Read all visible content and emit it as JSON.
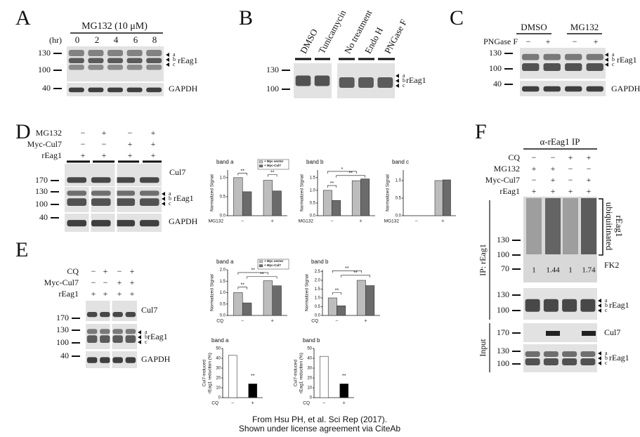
{
  "panel_labels": [
    "A",
    "B",
    "C",
    "D",
    "E",
    "F"
  ],
  "panel_a": {
    "treatment": "MG132 (10 μM)",
    "time_label": "(hr)",
    "times": [
      "0",
      "2",
      "4",
      "6",
      "8"
    ],
    "mw": [
      "130",
      "100",
      "40"
    ],
    "bands": [
      "a",
      "b",
      "c"
    ],
    "protein": "rEag1",
    "loading": "GAPDH"
  },
  "panel_b": {
    "lanes": [
      "DMSO",
      "Tunicamycin",
      "No treatment",
      "Endo H",
      "PNGase F"
    ],
    "mw": [
      "130",
      "100"
    ],
    "bands": [
      "a",
      "b",
      "c"
    ],
    "protein": "rEag1"
  },
  "panel_c": {
    "groups": [
      "DMSO",
      "MG132"
    ],
    "row_label": "PNGase F",
    "signs": [
      "−",
      "+",
      "−",
      "+"
    ],
    "mw": [
      "130",
      "100",
      "40"
    ],
    "bands": [
      "a",
      "b",
      "c"
    ],
    "protein": "rEag1",
    "loading": "GAPDH"
  },
  "panel_d": {
    "rows": [
      {
        "label": "MG132",
        "signs": [
          "−",
          "+",
          "−",
          "+"
        ]
      },
      {
        "label": "Myc-Cul7",
        "signs": [
          "−",
          "−",
          "+",
          "+"
        ]
      },
      {
        "label": "rEag1",
        "signs": [
          "+",
          "+",
          "+",
          "+"
        ]
      }
    ],
    "mw": [
      "170",
      "130",
      "100",
      "40"
    ],
    "blots": [
      "Cul7",
      "rEag1",
      "GAPDH"
    ],
    "bands": [
      "a",
      "b",
      "c"
    ]
  },
  "panel_e": {
    "rows": [
      {
        "label": "CQ",
        "signs": [
          "−",
          "+",
          "−",
          "+"
        ]
      },
      {
        "label": "Myc-Cul7",
        "signs": [
          "−",
          "−",
          "+",
          "+"
        ]
      },
      {
        "label": "rEag1",
        "signs": [
          "+",
          "+",
          "+",
          "+"
        ]
      }
    ],
    "mw": [
      "170",
      "130",
      "100",
      "40"
    ],
    "blots": [
      "Cul7",
      "rEag1",
      "GAPDH"
    ],
    "bands": [
      "a",
      "b",
      "c"
    ]
  },
  "panel_f": {
    "ip": "α-rEag1 IP",
    "rows": [
      {
        "label": "CQ",
        "signs": [
          "−",
          "−",
          "+",
          "+"
        ]
      },
      {
        "label": "MG132",
        "signs": [
          "+",
          "+",
          "−",
          "−"
        ]
      },
      {
        "label": "Myc-Cul7",
        "signs": [
          "−",
          "+",
          "−",
          "+"
        ]
      },
      {
        "label": "rEag1",
        "signs": [
          "+",
          "+",
          "+",
          "+"
        ]
      }
    ],
    "mw": [
      "130",
      "100",
      "70",
      "130",
      "100",
      "170",
      "130",
      "100"
    ],
    "quant": [
      "1",
      "1.44",
      "1",
      "1.74"
    ],
    "ub_label": [
      "ubiquitinated",
      "rEag1"
    ],
    "fk2": "FK2",
    "side_labels": [
      "IP: rEag1",
      "Input"
    ],
    "blots": [
      "rEag1",
      "Cul7",
      "rEag1"
    ],
    "bands_ip": [
      "a",
      "b",
      "c"
    ],
    "bands_input": [
      "a",
      "b",
      "c"
    ]
  },
  "credit": [
    "From Hsu PH, et al. Sci Rep (2017).",
    "Shown under license agreement via CiteAb"
  ],
  "chart_data": [
    {
      "type": "bar",
      "title": "band a",
      "ylabel": [
        "Normalized Signal"
      ],
      "xlabel": "MG132",
      "categories": [
        "−",
        "+"
      ],
      "series": [
        {
          "name": "+ Myc vector",
          "color": "#bdbdbd",
          "values": [
            1.0,
            0.93
          ]
        },
        {
          "name": "+ Myc-Cul7",
          "color": "#6b6b6b",
          "values": [
            0.63,
            0.65
          ]
        }
      ],
      "ylim": [
        0,
        1.2
      ],
      "yticks": [
        {
          "value": 0,
          "label": "0.0"
        },
        {
          "value": 0.5,
          "label": "0.5"
        },
        {
          "value": 1,
          "label": "1.0"
        }
      ],
      "legend": "top-right",
      "annotations": [
        "**",
        "**"
      ]
    },
    {
      "type": "bar",
      "title": "band b",
      "ylabel": [
        "Normalized Signal"
      ],
      "xlabel": "MG132",
      "categories": [
        "−",
        "+"
      ],
      "series": [
        {
          "color": "#bdbdbd",
          "values": [
            1.0,
            1.38
          ]
        },
        {
          "color": "#6b6b6b",
          "values": [
            0.6,
            1.45
          ]
        }
      ],
      "ylim": [
        0,
        1.8
      ],
      "yticks": [
        {
          "value": 0,
          "label": "0.0"
        },
        {
          "value": 0.5,
          "label": "0.5"
        },
        {
          "value": 1,
          "label": "1.0"
        },
        {
          "value": 1.5,
          "label": "1.5"
        }
      ],
      "annotations": [
        "**",
        "*",
        "**"
      ]
    },
    {
      "type": "bar",
      "title": "band c",
      "ylabel": [
        "Normalized Signal"
      ],
      "xlabel": "MG132",
      "categories": [
        "−",
        "+"
      ],
      "series": [
        {
          "color": "#bdbdbd",
          "values": [
            null,
            1.0
          ]
        },
        {
          "color": "#6b6b6b",
          "values": [
            null,
            1.02
          ]
        }
      ],
      "ylim": [
        0,
        1.3
      ],
      "yticks": [
        {
          "value": 0,
          "label": "0.0"
        },
        {
          "value": 0.5,
          "label": "0.5"
        },
        {
          "value": 1,
          "label": "1.0"
        }
      ]
    },
    {
      "type": "bar",
      "title": "band a",
      "ylabel": [
        "Normalized Signal"
      ],
      "xlabel": "CQ",
      "categories": [
        "−",
        "+"
      ],
      "series": [
        {
          "name": "+ Myc vector",
          "color": "#bdbdbd",
          "values": [
            1.0,
            1.52
          ]
        },
        {
          "name": "+ Myc-Cul7",
          "color": "#6b6b6b",
          "values": [
            0.55,
            1.3
          ]
        }
      ],
      "ylim": [
        0,
        2.0
      ],
      "yticks": [
        {
          "value": 0,
          "label": "0.0"
        },
        {
          "value": 0.5,
          "label": "0.5"
        },
        {
          "value": 1,
          "label": "1.0"
        },
        {
          "value": 1.5,
          "label": "1.5"
        },
        {
          "value": 2,
          "label": "2.0"
        }
      ],
      "legend": "top-right",
      "annotations": [
        "**",
        "**",
        "**"
      ]
    },
    {
      "type": "bar",
      "title": "band b",
      "ylabel": [
        "Normalized Signal"
      ],
      "xlabel": "CQ",
      "categories": [
        "−",
        "+"
      ],
      "series": [
        {
          "color": "#bdbdbd",
          "values": [
            1.0,
            2.0
          ]
        },
        {
          "color": "#6b6b6b",
          "values": [
            0.55,
            1.7
          ]
        }
      ],
      "ylim": [
        0,
        2.6
      ],
      "yticks": [
        {
          "value": 0,
          "label": "0.0"
        },
        {
          "value": 0.5,
          "label": "0.5"
        },
        {
          "value": 1,
          "label": "1.0"
        },
        {
          "value": 1.5,
          "label": "1.5"
        },
        {
          "value": 2,
          "label": "2.0"
        },
        {
          "value": 2.5,
          "label": "2.5"
        }
      ],
      "annotations": [
        "**",
        "**",
        "**"
      ]
    },
    {
      "type": "bar",
      "title": "band a",
      "ylabel": [
        "Cul7-induced",
        "rEag1 reduction (%)"
      ],
      "xlabel": "CQ",
      "categories": [
        "−",
        "+"
      ],
      "values": [
        43,
        14
      ],
      "colors": [
        "#ffffff",
        "#000000"
      ],
      "ylim": [
        0,
        50
      ],
      "yticks": [
        0,
        10,
        20,
        30,
        40,
        50
      ],
      "annotations": [
        "**"
      ]
    },
    {
      "type": "bar",
      "title": "band b",
      "ylabel": [
        "Cul7-induced",
        "rEag1 reduction (%)"
      ],
      "xlabel": "CQ",
      "categories": [
        "−",
        "+"
      ],
      "values": [
        42,
        14
      ],
      "colors": [
        "#ffffff",
        "#000000"
      ],
      "ylim": [
        0,
        50
      ],
      "yticks": [
        0,
        10,
        20,
        30,
        40,
        50
      ],
      "annotations": [
        "**"
      ]
    }
  ]
}
